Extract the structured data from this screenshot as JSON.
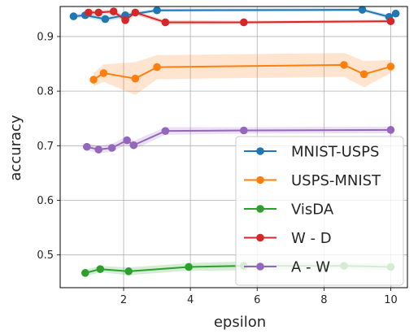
{
  "chart_data": {
    "type": "line",
    "title": "",
    "xlabel": "epsilon",
    "ylabel": "accuracy",
    "xlim": [
      0.1,
      10.5
    ],
    "ylim": [
      0.44,
      0.955
    ],
    "xticks": [
      2,
      4,
      6,
      8,
      10
    ],
    "yticks": [
      0.5,
      0.6,
      0.7,
      0.8,
      0.9
    ],
    "xtick_labels": [
      "2",
      "4",
      "6",
      "8",
      "10"
    ],
    "ytick_labels": [
      "0.5",
      "0.6",
      "0.7",
      "0.8",
      "0.9"
    ],
    "grid": true,
    "legend_position": "lower-right",
    "series": [
      {
        "name": "MNIST-USPS",
        "color": "#1f77b4",
        "x": [
          0.5,
          0.85,
          1.45,
          2.05,
          3.0,
          9.15,
          9.95,
          10.15
        ],
        "y": [
          0.937,
          0.939,
          0.932,
          0.939,
          0.948,
          0.949,
          0.936,
          0.942
        ],
        "err": [
          0.004,
          0.004,
          0.005,
          0.004,
          0.003,
          0.003,
          0.004,
          0.003
        ]
      },
      {
        "name": "USPS-MNIST",
        "color": "#ff7f0e",
        "x": [
          1.1,
          1.4,
          2.35,
          3.0,
          8.6,
          9.2,
          10.0
        ],
        "y": [
          0.821,
          0.833,
          0.823,
          0.844,
          0.848,
          0.831,
          0.845
        ],
        "err": [
          0.012,
          0.016,
          0.03,
          0.022,
          0.022,
          0.024,
          0.012
        ]
      },
      {
        "name": "VisDA",
        "color": "#2ca02c",
        "x": [
          0.85,
          1.3,
          2.15,
          3.95,
          5.6,
          8.6,
          10.0
        ],
        "y": [
          0.467,
          0.474,
          0.47,
          0.478,
          0.48,
          0.48,
          0.478
        ],
        "err": [
          0.006,
          0.006,
          0.007,
          0.007,
          0.008,
          0.006,
          0.006
        ]
      },
      {
        "name": "W - D",
        "color": "#d62728",
        "x": [
          0.95,
          1.25,
          1.7,
          2.05,
          2.35,
          3.25,
          5.6,
          10.0
        ],
        "y": [
          0.944,
          0.944,
          0.946,
          0.93,
          0.944,
          0.926,
          0.926,
          0.928
        ],
        "err": [
          0.004,
          0.004,
          0.004,
          0.006,
          0.004,
          0.004,
          0.003,
          0.003
        ]
      },
      {
        "name": "A - W",
        "color": "#9467bd",
        "x": [
          0.9,
          1.25,
          1.65,
          2.1,
          2.3,
          3.25,
          5.6,
          10.0
        ],
        "y": [
          0.698,
          0.693,
          0.696,
          0.71,
          0.701,
          0.727,
          0.728,
          0.729
        ],
        "err": [
          0.006,
          0.007,
          0.007,
          0.008,
          0.008,
          0.007,
          0.006,
          0.006
        ]
      }
    ]
  }
}
